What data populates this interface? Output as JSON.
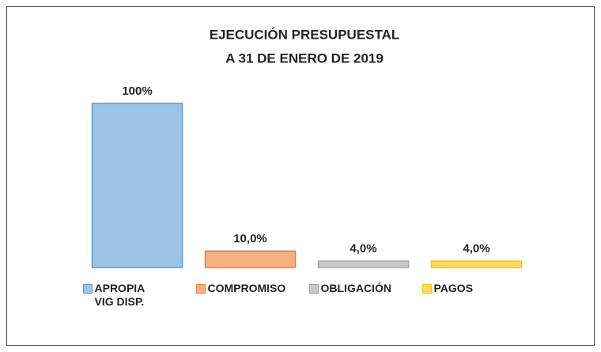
{
  "chart_data": {
    "type": "bar",
    "title": "EJECUCIÓN PRESUPUESTAL",
    "subtitle": "A 31 DE ENERO DE 2019",
    "categories": [
      "APROPIA VIG DISP.",
      "COMPROMISO",
      "OBLIGACIÓN",
      "PAGOS"
    ],
    "values": [
      100,
      10,
      4,
      4
    ],
    "value_labels": [
      "100%",
      "10,0%",
      "4,0%",
      "4,0%"
    ],
    "colors": [
      "#9dc3e6",
      "#f4b183",
      "#c9c9c9",
      "#ffd966"
    ],
    "edgecolors": [
      "#5b9bd5",
      "#ed7d31",
      "#a5a5a5",
      "#ffc000"
    ],
    "legend": "bottom"
  }
}
